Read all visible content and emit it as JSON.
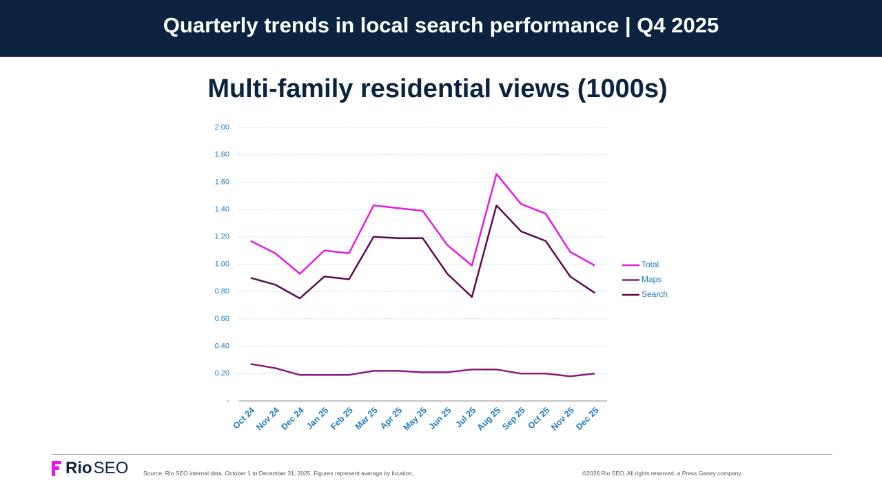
{
  "header": {
    "title": "Quarterly trends in local search performance | Q4 2025"
  },
  "chart_data": {
    "type": "line",
    "title": "Multi-family residential views (1000s)",
    "categories": [
      "Oct 24",
      "Nov 24",
      "Dec 24",
      "Jan 25",
      "Feb 25",
      "Mar 25",
      "Apr 25",
      "May 25",
      "Jun 25",
      "Jul 25",
      "Aug 25",
      "Sep 25",
      "Oct 25",
      "Nov 25",
      "Dec 25"
    ],
    "series": [
      {
        "name": "Total",
        "color": "#e619e6",
        "values": [
          1.17,
          1.08,
          0.93,
          1.1,
          1.08,
          1.43,
          1.41,
          1.39,
          1.14,
          0.99,
          1.66,
          1.44,
          1.37,
          1.09,
          0.99
        ]
      },
      {
        "name": "Maps",
        "color": "#8b1a7e",
        "values": [
          0.27,
          0.24,
          0.19,
          0.19,
          0.19,
          0.22,
          0.22,
          0.21,
          0.21,
          0.23,
          0.23,
          0.2,
          0.2,
          0.18,
          0.2
        ]
      },
      {
        "name": "Search",
        "color": "#5c0a4f",
        "values": [
          0.9,
          0.85,
          0.75,
          0.91,
          0.89,
          1.2,
          1.19,
          1.19,
          0.93,
          0.76,
          1.43,
          1.24,
          1.17,
          0.91,
          0.79
        ]
      }
    ],
    "ylim": [
      0,
      2
    ],
    "yticks": [
      {
        "value": 0,
        "label": "-"
      },
      {
        "value": 0.2,
        "label": "0.20"
      },
      {
        "value": 0.4,
        "label": "0.40"
      },
      {
        "value": 0.6,
        "label": "0.60"
      },
      {
        "value": 0.8,
        "label": "0.80"
      },
      {
        "value": 1,
        "label": "1.00"
      },
      {
        "value": 1.2,
        "label": "1.20"
      },
      {
        "value": 1.4,
        "label": "1.40"
      },
      {
        "value": 1.6,
        "label": "1.60"
      },
      {
        "value": 1.8,
        "label": "1.80"
      },
      {
        "value": 2,
        "label": "2.00"
      }
    ],
    "grid": true,
    "legend": "right"
  },
  "footer": {
    "logo_bold": "Rio",
    "logo_light": "SEO",
    "source": "Source: Rio SEO internal data, October 1 to December 31, 2025. Figures represent average by location.",
    "copyright": "©2026 Rio SEO. All rights reserved, a Press Ganey company."
  }
}
